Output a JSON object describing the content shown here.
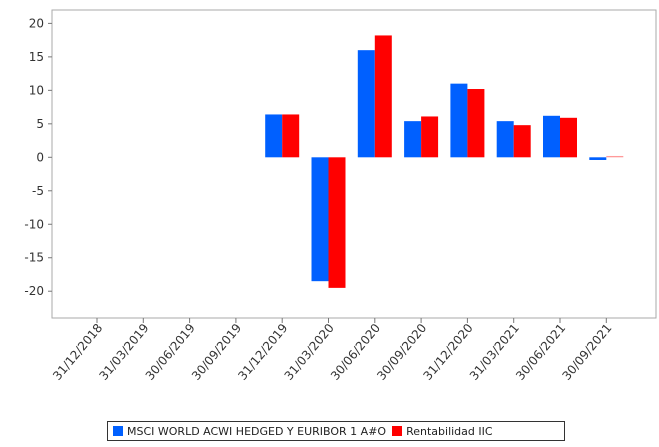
{
  "chart_data": {
    "type": "bar",
    "categories": [
      "31/12/2018",
      "31/03/2019",
      "30/06/2019",
      "30/09/2019",
      "31/12/2019",
      "31/03/2020",
      "30/06/2020",
      "30/09/2020",
      "31/12/2020",
      "31/03/2021",
      "30/06/2021",
      "30/09/2021"
    ],
    "series": [
      {
        "name": "MSCI WORLD ACWI HEDGED Y EURIBOR 1 A#O",
        "color": "#0060ff",
        "values": [
          null,
          null,
          null,
          null,
          6.4,
          -18.5,
          16.0,
          5.4,
          11.0,
          5.4,
          6.2,
          -0.4
        ]
      },
      {
        "name": "Rentabilidad IIC",
        "color": "#ff0000",
        "values": [
          null,
          null,
          null,
          null,
          6.4,
          -19.5,
          18.2,
          6.1,
          10.2,
          4.8,
          5.9,
          0.2
        ]
      }
    ],
    "yticks": [
      20,
      15,
      10,
      5,
      0,
      -5,
      -10,
      -15,
      -20
    ],
    "ylim": [
      -24,
      22
    ],
    "grid": false,
    "legend_position": "bottom",
    "title": "",
    "xlabel": "",
    "ylabel": ""
  }
}
